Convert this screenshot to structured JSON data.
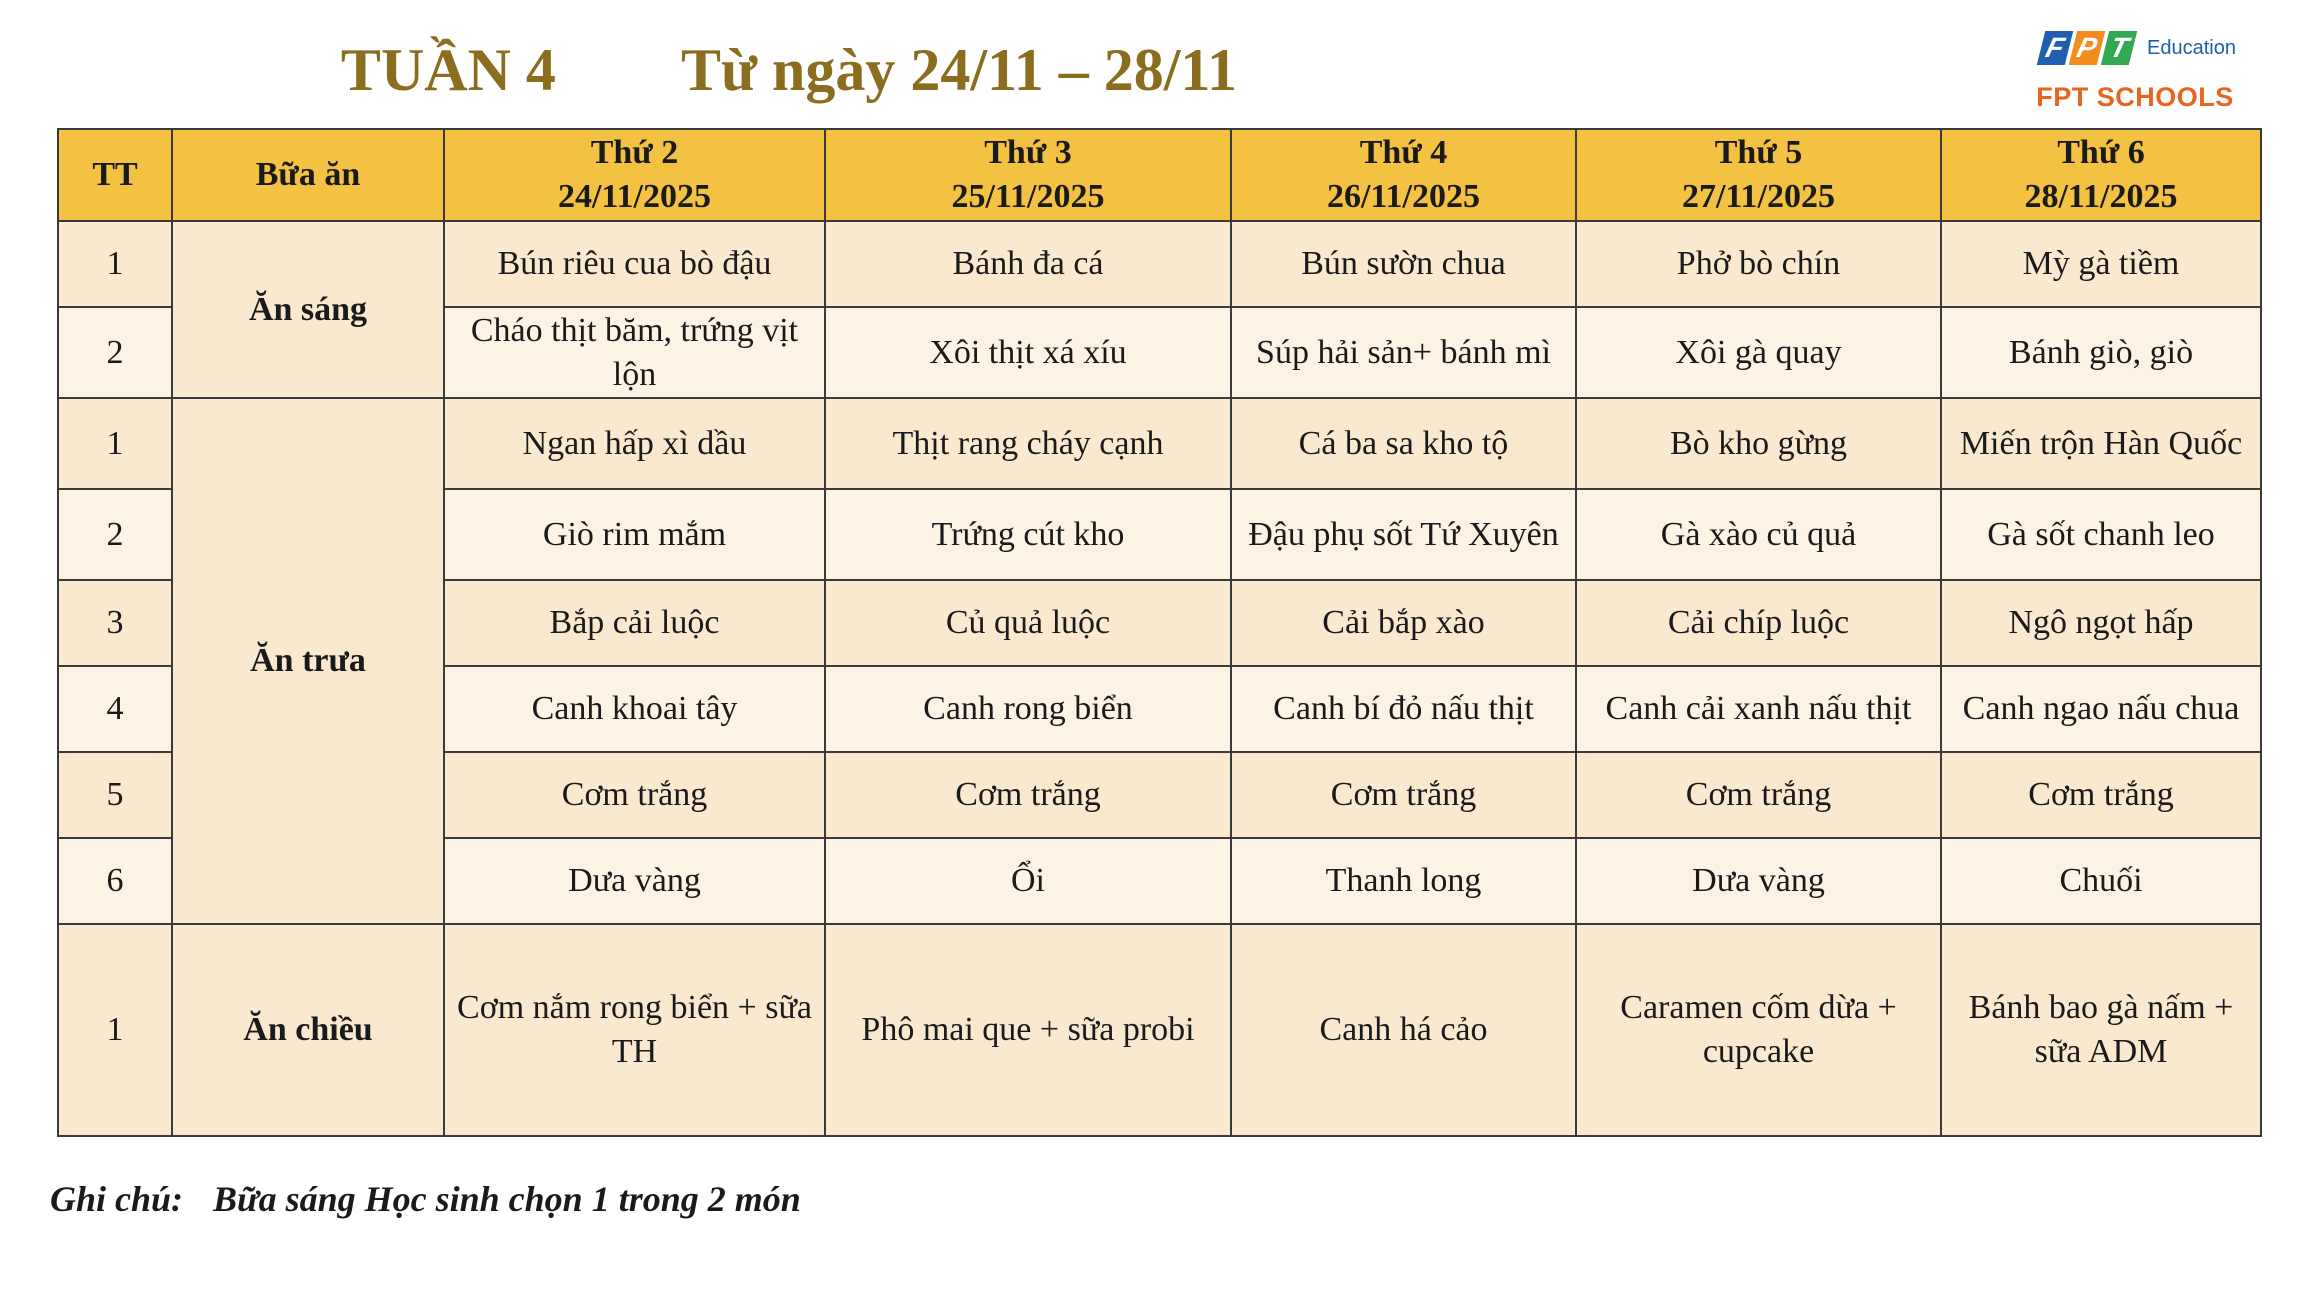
{
  "header": {
    "week": "TUẦN 4",
    "range": "Từ ngày 24/11 – 28/11"
  },
  "logo": {
    "letters": [
      "F",
      "P",
      "T"
    ],
    "education": "Education",
    "schools": "FPT SCHOOLS"
  },
  "table": {
    "col_tt": "TT",
    "col_meal": "Bữa ăn",
    "days": [
      {
        "name": "Thứ 2",
        "date": "24/11/2025"
      },
      {
        "name": "Thứ 3",
        "date": "25/11/2025"
      },
      {
        "name": "Thứ 4",
        "date": "26/11/2025"
      },
      {
        "name": "Thứ 5",
        "date": "27/11/2025"
      },
      {
        "name": "Thứ 6",
        "date": "28/11/2025"
      }
    ],
    "meals": {
      "breakfast": "Ăn sáng",
      "lunch": "Ăn trưa",
      "afternoon": "Ăn chiều"
    },
    "rows": [
      {
        "tt": "1",
        "dishes": [
          "Bún riêu cua bò đậu",
          "Bánh đa cá",
          "Bún sườn chua",
          "Phở bò chín",
          "Mỳ gà tiềm"
        ]
      },
      {
        "tt": "2",
        "dishes": [
          "Cháo thịt băm, trứng vịt lộn",
          "Xôi thịt xá xíu",
          "Súp hải sản+ bánh mì",
          "Xôi gà quay",
          "Bánh giò, giò"
        ]
      },
      {
        "tt": "1",
        "dishes": [
          "Ngan hấp xì dầu",
          "Thịt rang cháy cạnh",
          "Cá ba sa kho tộ",
          "Bò kho gừng",
          "Miến trộn Hàn Quốc"
        ]
      },
      {
        "tt": "2",
        "dishes": [
          "Giò rim mắm",
          "Trứng cút kho",
          "Đậu phụ sốt Tứ Xuyên",
          "Gà xào củ quả",
          "Gà sốt chanh leo"
        ]
      },
      {
        "tt": "3",
        "dishes": [
          "Bắp cải luộc",
          "Củ quả luộc",
          "Cải bắp xào",
          "Cải chíp luộc",
          "Ngô ngọt hấp"
        ]
      },
      {
        "tt": "4",
        "dishes": [
          "Canh khoai tây",
          "Canh rong biển",
          "Canh bí đỏ nấu thịt",
          "Canh cải xanh nấu thịt",
          "Canh ngao nấu chua"
        ]
      },
      {
        "tt": "5",
        "dishes": [
          "Cơm trắng",
          "Cơm trắng",
          "Cơm trắng",
          "Cơm trắng",
          "Cơm trắng"
        ]
      },
      {
        "tt": "6",
        "dishes": [
          "Dưa vàng",
          "Ổi",
          "Thanh long",
          "Dưa vàng",
          "Chuối"
        ]
      },
      {
        "tt": "1",
        "dishes": [
          "Cơm nắm rong biển + sữa TH",
          "Phô mai que + sữa probi",
          "Canh há cảo",
          "Caramen cốm dừa + cupcake",
          "Bánh bao gà nấm + sữa ADM"
        ]
      }
    ]
  },
  "note": {
    "label": "Ghi chú:",
    "text": "Bữa sáng Học sinh chọn 1 trong 2 món"
  }
}
